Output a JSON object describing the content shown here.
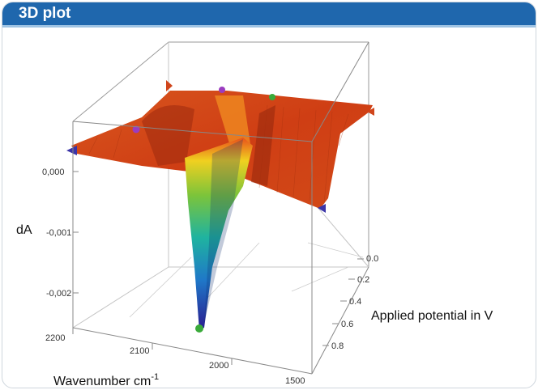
{
  "header": {
    "title": "3D plot",
    "color": "#1f67ad"
  },
  "chart_data": {
    "type": "surface3d",
    "zlabel": "dA",
    "xlabel": "Wavenumber cm",
    "xlabel_superscript": "-1",
    "ylabel": "Applied potential in V",
    "x_ticks": [
      "2200",
      "2100",
      "2000",
      "1500"
    ],
    "y_ticks": [
      "0.0",
      "0.2",
      "0.4",
      "0.6",
      "0.8"
    ],
    "z_ticks": [
      "0,000",
      "-0,001",
      "-0,002"
    ],
    "xlim": [
      1500,
      2200
    ],
    "ylim": [
      0.0,
      0.8
    ],
    "zlim": [
      -0.0026,
      0.0004
    ],
    "surface": {
      "baseline": 0.0,
      "trough_min": -0.0026,
      "trough_wavenumber_approx": 2040,
      "colormap": [
        "#2a1b8f",
        "#1f78c8",
        "#1fb3a0",
        "#7cc43a",
        "#f0d020",
        "#f07a10",
        "#d43a10"
      ]
    },
    "markers": [
      {
        "color": "#3b35a8"
      },
      {
        "color": "#9a3cc0"
      },
      {
        "color": "#3aaa3a"
      },
      {
        "color": "#d0451b"
      }
    ]
  }
}
